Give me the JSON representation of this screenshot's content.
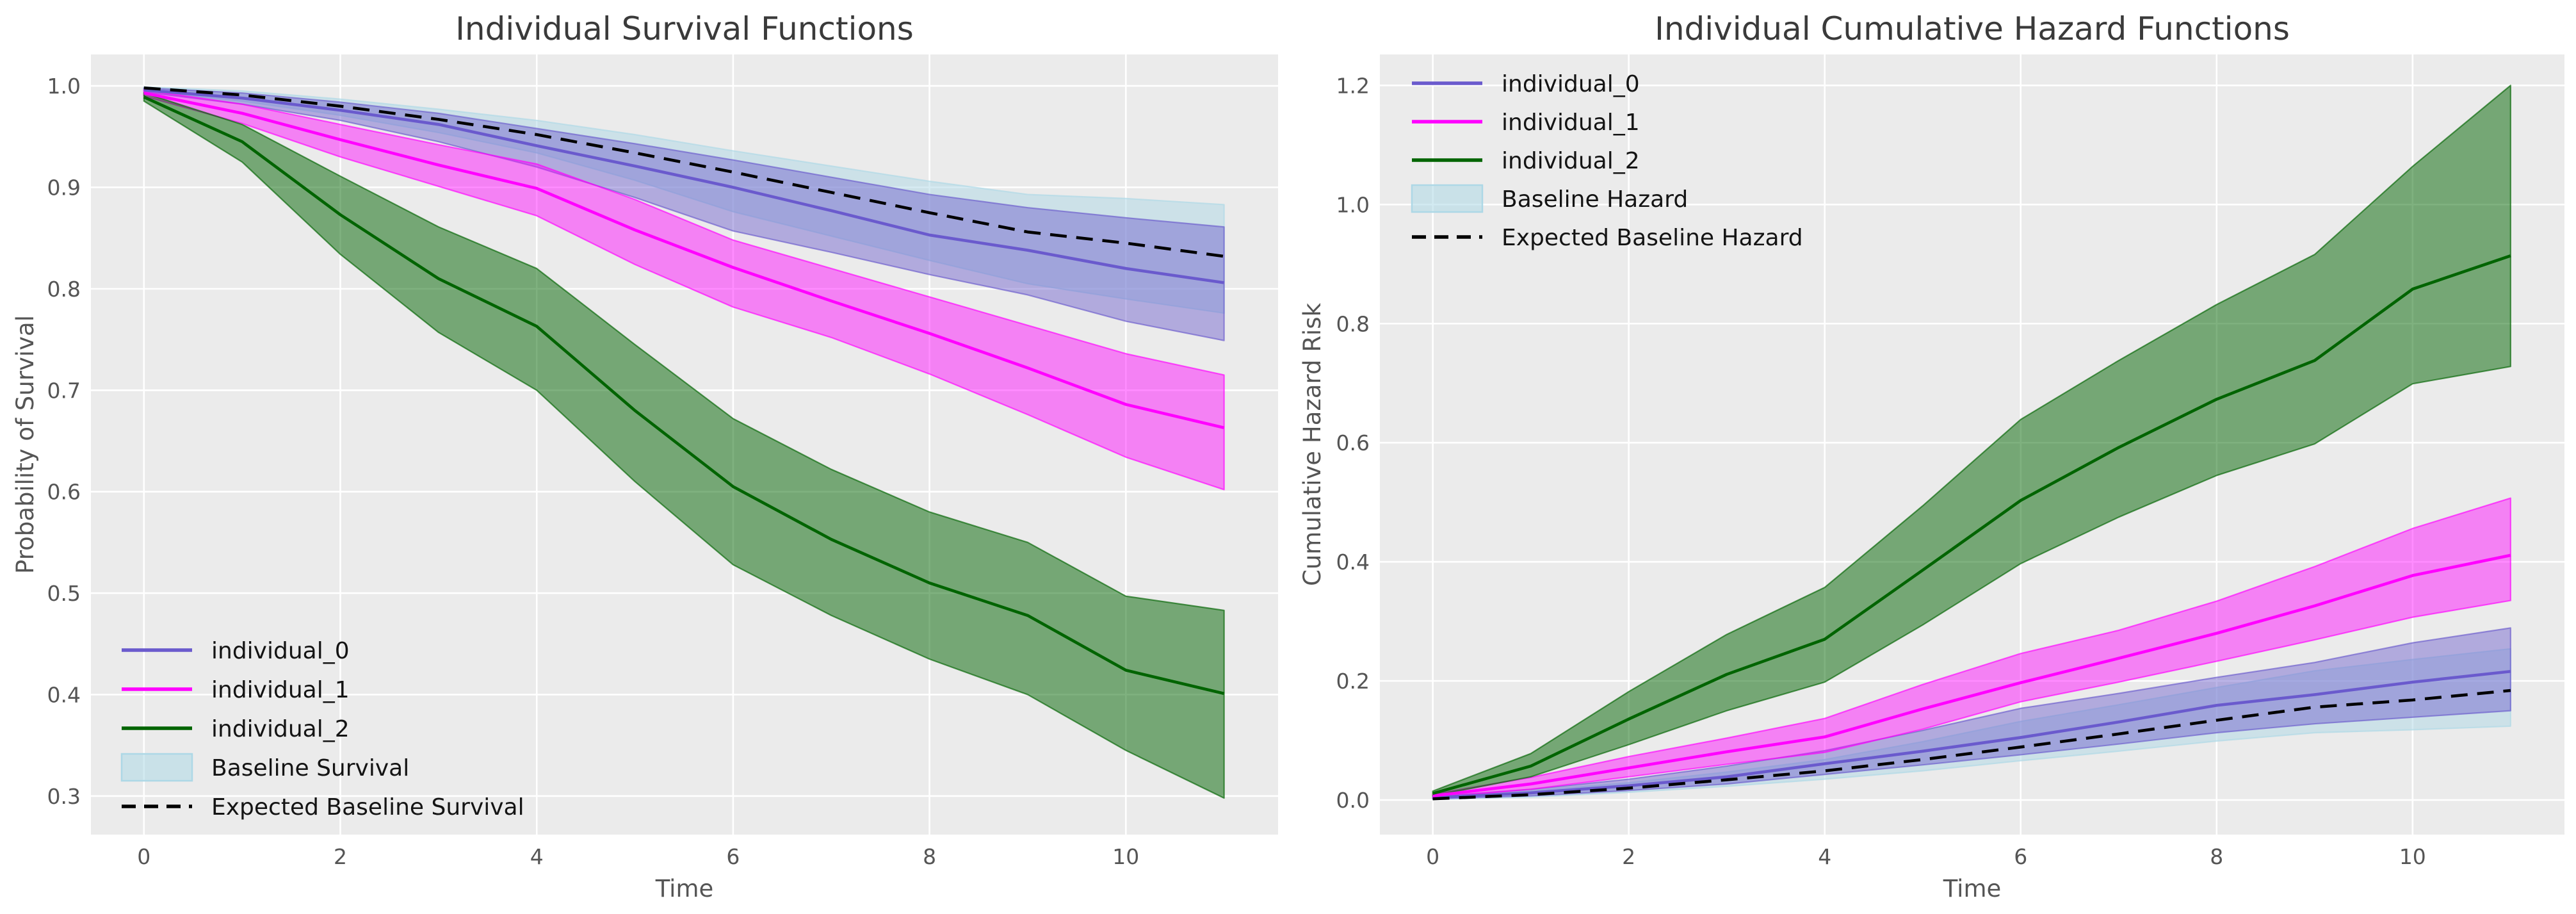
{
  "style": {
    "figure_background": "#ffffff",
    "axes_background": "#EBEBEB",
    "grid_color": "#ffffff",
    "dashed_line_color": "#000000"
  },
  "chart_data": [
    {
      "type": "line",
      "title": "Individual Survival Functions",
      "xlabel": "Time",
      "ylabel": "Probability of Survival",
      "grid": true,
      "legend_position": "lower left",
      "x": [
        0,
        1,
        2,
        3,
        4,
        5,
        6,
        7,
        8,
        9,
        10,
        11
      ],
      "xticks": [
        0,
        2,
        4,
        6,
        8,
        10
      ],
      "yticks": [
        0.3,
        0.4,
        0.5,
        0.6,
        0.7,
        0.8,
        0.9,
        1.0
      ],
      "xlim": [
        -0.54,
        11.55
      ],
      "ylim": [
        0.262,
        1.031
      ],
      "series": [
        {
          "name": "individual_0",
          "color": "#6A5ACD",
          "style": "solid",
          "band_alpha": 0.45,
          "values": [
            0.996,
            0.988,
            0.976,
            0.962,
            0.941,
            0.921,
            0.9,
            0.877,
            0.853,
            0.838,
            0.82,
            0.806
          ],
          "ci_upper": [
            0.998,
            0.993,
            0.984,
            0.973,
            0.958,
            0.943,
            0.927,
            0.91,
            0.893,
            0.88,
            0.87,
            0.861
          ],
          "ci_lower": [
            0.994,
            0.982,
            0.966,
            0.945,
            0.92,
            0.89,
            0.857,
            0.836,
            0.814,
            0.794,
            0.768,
            0.749
          ]
        },
        {
          "name": "individual_1",
          "color": "#FF00FF",
          "style": "solid",
          "band_alpha": 0.45,
          "values": [
            0.993,
            0.973,
            0.947,
            0.922,
            0.899,
            0.858,
            0.821,
            0.788,
            0.756,
            0.722,
            0.686,
            0.663
          ],
          "ci_upper": [
            0.996,
            0.982,
            0.962,
            0.942,
            0.923,
            0.888,
            0.848,
            0.82,
            0.792,
            0.764,
            0.736,
            0.715
          ],
          "ci_lower": [
            0.99,
            0.963,
            0.93,
            0.901,
            0.872,
            0.824,
            0.782,
            0.752,
            0.716,
            0.676,
            0.634,
            0.602
          ]
        },
        {
          "name": "individual_2",
          "color": "#006400",
          "style": "solid",
          "band_alpha": 0.5,
          "values": [
            0.989,
            0.945,
            0.873,
            0.81,
            0.763,
            0.68,
            0.605,
            0.553,
            0.51,
            0.478,
            0.424,
            0.401
          ],
          "ci_upper": [
            0.993,
            0.962,
            0.911,
            0.861,
            0.82,
            0.745,
            0.672,
            0.622,
            0.58,
            0.55,
            0.497,
            0.483
          ],
          "ci_lower": [
            0.985,
            0.925,
            0.834,
            0.757,
            0.7,
            0.61,
            0.528,
            0.478,
            0.435,
            0.4,
            0.345,
            0.298
          ]
        },
        {
          "name": "Baseline Survival",
          "color": "#ADD8E6",
          "style": "band",
          "band_alpha": 0.5,
          "ci_upper": [
            0.999,
            0.995,
            0.987,
            0.977,
            0.966,
            0.952,
            0.936,
            0.921,
            0.906,
            0.893,
            0.889,
            0.883
          ],
          "ci_lower": [
            0.995,
            0.985,
            0.971,
            0.954,
            0.934,
            0.907,
            0.876,
            0.852,
            0.828,
            0.805,
            0.79,
            0.776
          ]
        },
        {
          "name": "Expected Baseline Survival",
          "color": "#000000",
          "style": "dashed",
          "values": [
            0.998,
            0.991,
            0.98,
            0.967,
            0.952,
            0.934,
            0.915,
            0.895,
            0.875,
            0.856,
            0.845,
            0.832
          ]
        }
      ]
    },
    {
      "type": "line",
      "title": "Individual Cumulative Hazard Functions",
      "xlabel": "Time",
      "ylabel": "Cumulative Hazard Risk",
      "grid": true,
      "legend_position": "upper left",
      "x": [
        0,
        1,
        2,
        3,
        4,
        5,
        6,
        7,
        8,
        9,
        10,
        11
      ],
      "xticks": [
        0,
        2,
        4,
        6,
        8,
        10
      ],
      "yticks": [
        0.0,
        0.2,
        0.4,
        0.6,
        0.8,
        1.0,
        1.2
      ],
      "xlim": [
        -0.54,
        11.55
      ],
      "ylim": [
        -0.058,
        1.252
      ],
      "series": [
        {
          "name": "individual_0",
          "color": "#6A5ACD",
          "style": "solid",
          "band_alpha": 0.45,
          "values": [
            0.004,
            0.012,
            0.024,
            0.039,
            0.061,
            0.082,
            0.105,
            0.131,
            0.159,
            0.177,
            0.198,
            0.216
          ],
          "ci_upper": [
            0.006,
            0.018,
            0.035,
            0.057,
            0.083,
            0.117,
            0.154,
            0.179,
            0.206,
            0.231,
            0.264,
            0.289
          ],
          "ci_lower": [
            0.002,
            0.007,
            0.016,
            0.027,
            0.043,
            0.059,
            0.076,
            0.094,
            0.113,
            0.128,
            0.139,
            0.15
          ]
        },
        {
          "name": "individual_1",
          "color": "#FF00FF",
          "style": "solid",
          "band_alpha": 0.45,
          "values": [
            0.007,
            0.027,
            0.054,
            0.081,
            0.106,
            0.153,
            0.197,
            0.238,
            0.28,
            0.326,
            0.377,
            0.411
          ],
          "ci_upper": [
            0.01,
            0.038,
            0.073,
            0.104,
            0.137,
            0.194,
            0.246,
            0.285,
            0.334,
            0.392,
            0.456,
            0.507
          ],
          "ci_lower": [
            0.004,
            0.018,
            0.039,
            0.06,
            0.08,
            0.119,
            0.165,
            0.198,
            0.233,
            0.269,
            0.307,
            0.335
          ]
        },
        {
          "name": "individual_2",
          "color": "#006400",
          "style": "solid",
          "band_alpha": 0.5,
          "values": [
            0.011,
            0.057,
            0.136,
            0.211,
            0.27,
            0.386,
            0.503,
            0.592,
            0.673,
            0.738,
            0.858,
            0.914
          ],
          "ci_upper": [
            0.015,
            0.078,
            0.182,
            0.278,
            0.357,
            0.494,
            0.639,
            0.738,
            0.832,
            0.916,
            1.064,
            1.2
          ],
          "ci_lower": [
            0.007,
            0.039,
            0.093,
            0.15,
            0.198,
            0.294,
            0.397,
            0.475,
            0.545,
            0.598,
            0.699,
            0.728
          ]
        },
        {
          "name": "Baseline Hazard",
          "color": "#ADD8E6",
          "style": "band",
          "band_alpha": 0.5,
          "ci_upper": [
            0.005,
            0.015,
            0.029,
            0.047,
            0.068,
            0.098,
            0.132,
            0.16,
            0.189,
            0.217,
            0.236,
            0.254
          ],
          "ci_lower": [
            0.001,
            0.005,
            0.013,
            0.023,
            0.035,
            0.049,
            0.066,
            0.082,
            0.099,
            0.113,
            0.118,
            0.124
          ]
        },
        {
          "name": "Expected Baseline Hazard",
          "color": "#000000",
          "style": "dashed",
          "values": [
            0.002,
            0.009,
            0.02,
            0.034,
            0.049,
            0.068,
            0.089,
            0.111,
            0.134,
            0.156,
            0.168,
            0.184
          ]
        }
      ]
    }
  ]
}
